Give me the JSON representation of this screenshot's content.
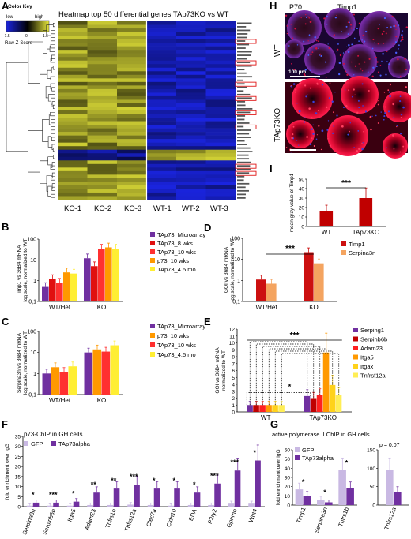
{
  "panel_letters": {
    "a": "A",
    "b": "B",
    "c": "C",
    "d": "D",
    "e": "E",
    "f": "F",
    "g": "G",
    "h": "H",
    "i": "I"
  },
  "panel_a": {
    "title": "Heatmap top 50 differential genes TAp73KO vs WT",
    "color_key": {
      "title": "Color Key",
      "low": "low",
      "high": "high",
      "scale_label": "Raw Z-Score",
      "ticks": [
        "-1.5",
        "0",
        "1.5"
      ]
    },
    "ko_columns": [
      "KO-1",
      "KO-2",
      "KO-3"
    ],
    "wt_columns": [
      "WT-1",
      "WT-2",
      "WT-3"
    ],
    "colors": {
      "low": "#1a24e0",
      "mid": "#000000",
      "high": "#e8e83a"
    }
  },
  "panel_h": {
    "timepoint": "P70",
    "gene": "Timp1",
    "row_labels": [
      "WT",
      "TAp73KO"
    ],
    "scale_bar": "100 µm"
  },
  "panel_b": {
    "ylabel": [
      "Timp1 vs 36B4 mRNA",
      "log scale, normalized to WT"
    ],
    "chart_data": {
      "type": "bar",
      "scale": "log",
      "yticks": [
        "100",
        "10",
        "1",
        "0,1"
      ],
      "categories": [
        "WT/Het",
        "KO"
      ],
      "series": [
        {
          "name": "TAp73_Microarray",
          "color": "#7030a0",
          "values": [
            0.5,
            12
          ]
        },
        {
          "name": "TAp73_8 wks",
          "color": "#e01010",
          "values": [
            1.2,
            5
          ]
        },
        {
          "name": "TAp73_10 wks",
          "color": "#ff3030",
          "values": [
            0.8,
            35
          ]
        },
        {
          "name": "p73_10 wks",
          "color": "#ff9900",
          "values": [
            2.5,
            40
          ]
        },
        {
          "name": "TAp73_4.5 mo",
          "color": "#ffee33",
          "values": [
            2.2,
            35
          ]
        }
      ]
    }
  },
  "panel_c": {
    "ylabel": [
      "Serpina3n vs 36B4 mRNA",
      "log scale, normalized to WT"
    ],
    "chart_data": {
      "type": "bar",
      "scale": "log",
      "yticks": [
        "100",
        "10",
        "1",
        "0,1"
      ],
      "categories": [
        "WT/Het",
        "KO"
      ],
      "series": [
        {
          "name": "TAp73_Microarray",
          "color": "#7030a0",
          "values": [
            1,
            10
          ]
        },
        {
          "name": "p73_10 wks",
          "color": "#ff9900",
          "values": [
            2,
            14
          ]
        },
        {
          "name": "TAp73_10 wks",
          "color": "#ff3030",
          "values": [
            1.2,
            11
          ]
        },
        {
          "name": "TAp73_4.5 mo",
          "color": "#ffee33",
          "values": [
            2.2,
            22
          ]
        }
      ]
    }
  },
  "panel_d": {
    "ylabel": [
      "GOI vs 36B4 mRNA",
      "log scale, normalized to WT"
    ],
    "significance": "***",
    "chart_data": {
      "type": "bar",
      "scale": "log",
      "yticks": [
        "100",
        "10",
        "1",
        "0,1"
      ],
      "categories": [
        "WT/Het",
        "KO"
      ],
      "series": [
        {
          "name": "Timp1",
          "color": "#cc1010",
          "values": [
            1.1,
            22
          ]
        },
        {
          "name": "Serpina3n",
          "color": "#f4a460",
          "values": [
            0.7,
            6.5
          ]
        }
      ]
    }
  },
  "panel_e": {
    "ylabel": [
      "GOI vs 36B4 mRNA",
      "normalized to WT"
    ],
    "sig_outer": "***",
    "sig_inner": "*",
    "chart_data": {
      "type": "bar",
      "yticks": [
        "0",
        "1",
        "2",
        "3",
        "4",
        "5",
        "6",
        "7",
        "8",
        "9",
        "10",
        "11",
        "12"
      ],
      "ylim": [
        0,
        12
      ],
      "categories": [
        "WT",
        "TAp73KO"
      ],
      "series": [
        {
          "name": "Serping1",
          "color": "#7030a0",
          "values": [
            1,
            2.3
          ]
        },
        {
          "name": "Serpinb6b",
          "color": "#c00000",
          "values": [
            1,
            2.0
          ]
        },
        {
          "name": "Adam23",
          "color": "#ff2020",
          "values": [
            1,
            2.4
          ]
        },
        {
          "name": "Itga5",
          "color": "#ff9900",
          "values": [
            1,
            8.6
          ]
        },
        {
          "name": "Itgax",
          "color": "#ffd21a",
          "values": [
            1,
            3.9
          ]
        },
        {
          "name": "Tnfrsf12a",
          "color": "#ffee55",
          "values": [
            1,
            2.5
          ]
        }
      ]
    }
  },
  "panel_f": {
    "title": "p73-ChIP in GH cells",
    "ylabel": [
      "fold enrichment over IgG"
    ],
    "chart_data": {
      "type": "bar",
      "yticks": [
        "0",
        "5",
        "10",
        "15",
        "20",
        "25",
        "30",
        "35"
      ],
      "ylim": [
        0,
        35
      ],
      "categories": [
        "Serpina3n",
        "Serpinb6b",
        "Itga5",
        "Adam23",
        "Tnfrs1b",
        "Tnfrs12a",
        "Clec7a",
        "Cldn10",
        "EDA",
        "P2ry2",
        "Gpnmb",
        "Wnt4"
      ],
      "significance": [
        "*",
        "***",
        "*",
        "**",
        "**",
        "***",
        "*",
        "*",
        "*",
        "***",
        "***",
        "*"
      ],
      "series": [
        {
          "name": "GFP",
          "color": "#c9b9e3",
          "values": [
            0.5,
            0.5,
            0.5,
            0.8,
            0.8,
            1,
            0.8,
            0.5,
            0.8,
            0.8,
            1.5,
            1.5
          ]
        },
        {
          "name": "TAp73alpha",
          "color": "#7030a0",
          "values": [
            2,
            2,
            2.5,
            7,
            9,
            11,
            9,
            9,
            7,
            11.5,
            18,
            23
          ]
        }
      ]
    }
  },
  "panel_g": {
    "title": "active polymerase II ChIP in GH cells",
    "ylabel": [
      "fold enrichment over IgG"
    ],
    "chart_data": {
      "type": "bar",
      "left": {
        "yticks": [
          "0",
          "10",
          "20",
          "30",
          "40",
          "50",
          "60"
        ],
        "ylim": [
          0,
          60
        ],
        "categories": [
          "Timp1",
          "Serpina3n",
          "Tnfrs1b"
        ],
        "significance": [
          "*",
          "*",
          "*"
        ],
        "series": [
          {
            "name": "GFP",
            "color": "#c9b9e3",
            "values": [
              17,
              6,
              38
            ]
          },
          {
            "name": "TAp73alpha",
            "color": "#7030a0",
            "values": [
              10,
              3,
              18
            ]
          }
        ]
      },
      "right": {
        "yticks": [
          "0",
          "50",
          "100",
          "150"
        ],
        "ylim": [
          0,
          150
        ],
        "categories": [
          "Tnfrs12a"
        ],
        "annotation": "p = 0.07",
        "series": [
          {
            "name": "GFP",
            "color": "#c9b9e3",
            "values": [
              95
            ]
          },
          {
            "name": "TAp73alpha",
            "color": "#7030a0",
            "values": [
              35
            ]
          }
        ]
      }
    }
  },
  "panel_i": {
    "ylabel": [
      "mean gray value of Timp1"
    ],
    "significance": "***",
    "chart_data": {
      "type": "bar",
      "yticks": [
        "0",
        "10",
        "20",
        "30",
        "40",
        "50"
      ],
      "ylim": [
        0,
        50
      ],
      "categories": [
        "WT",
        "TAp73KO"
      ],
      "values": [
        16,
        30
      ],
      "color": "#c00000"
    }
  }
}
